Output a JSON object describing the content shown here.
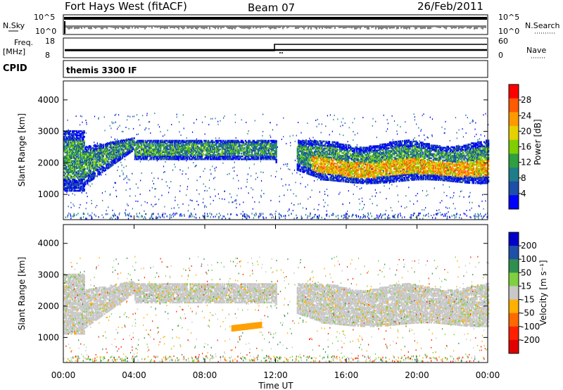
{
  "header": {
    "station": "Fort Hays West (fitACF)",
    "beam": "Beam 07",
    "date": "26/Feb/2011"
  },
  "panels": {
    "nsky": {
      "label": "N.Sky",
      "ticks_left": [
        "10^5",
        "10^0"
      ],
      "ticks_right": [
        "10^5",
        "10^0"
      ],
      "right_label": "N.Search"
    },
    "freq": {
      "label_line1": "Freq.",
      "label_line2": "[MHz]",
      "ticks_left": [
        "18",
        "8"
      ],
      "ticks_right": [
        "60",
        "0"
      ],
      "right_label": "Nave"
    },
    "cpid": {
      "label": "CPID",
      "value": "themis 3300 IF"
    }
  },
  "chart_data": [
    {
      "type": "heatmap",
      "name": "power",
      "ylabel": "Slant Range [km]",
      "yticks": [
        "4000",
        "3000",
        "2000",
        "1000"
      ],
      "ylim": [
        200,
        4600
      ],
      "colorbar": {
        "label": "Power [dB]",
        "ticks": [
          "28",
          "24",
          "20",
          "16",
          "12",
          "8",
          "4"
        ],
        "colors": [
          "#ff0000",
          "#ff5a00",
          "#ff9900",
          "#e6d000",
          "#7fcf00",
          "#2f9f3f",
          "#1f7d8a",
          "#1d4ea8",
          "#0000ff"
        ]
      }
    },
    {
      "type": "heatmap",
      "name": "velocity",
      "ylabel": "Slant Range [km]",
      "yticks": [
        "4000",
        "3000",
        "2000",
        "1000"
      ],
      "ylim": [
        200,
        4600
      ],
      "colorbar": {
        "label": "Velocity [m s⁻¹]",
        "ticks": [
          "200",
          "100",
          "50",
          "15",
          "-15",
          "-50",
          "-100",
          "-200"
        ],
        "colors": [
          "#0000c8",
          "#1f4fa8",
          "#2f8f4f",
          "#7fd040",
          "#c8c8c8",
          "#ffb000",
          "#ff6a00",
          "#ff2000",
          "#e00000"
        ]
      }
    }
  ],
  "time_axis": {
    "label": "Time UT",
    "ticks": [
      "00:00",
      "04:00",
      "08:00",
      "12:00",
      "16:00",
      "20:00",
      "00:00"
    ]
  }
}
